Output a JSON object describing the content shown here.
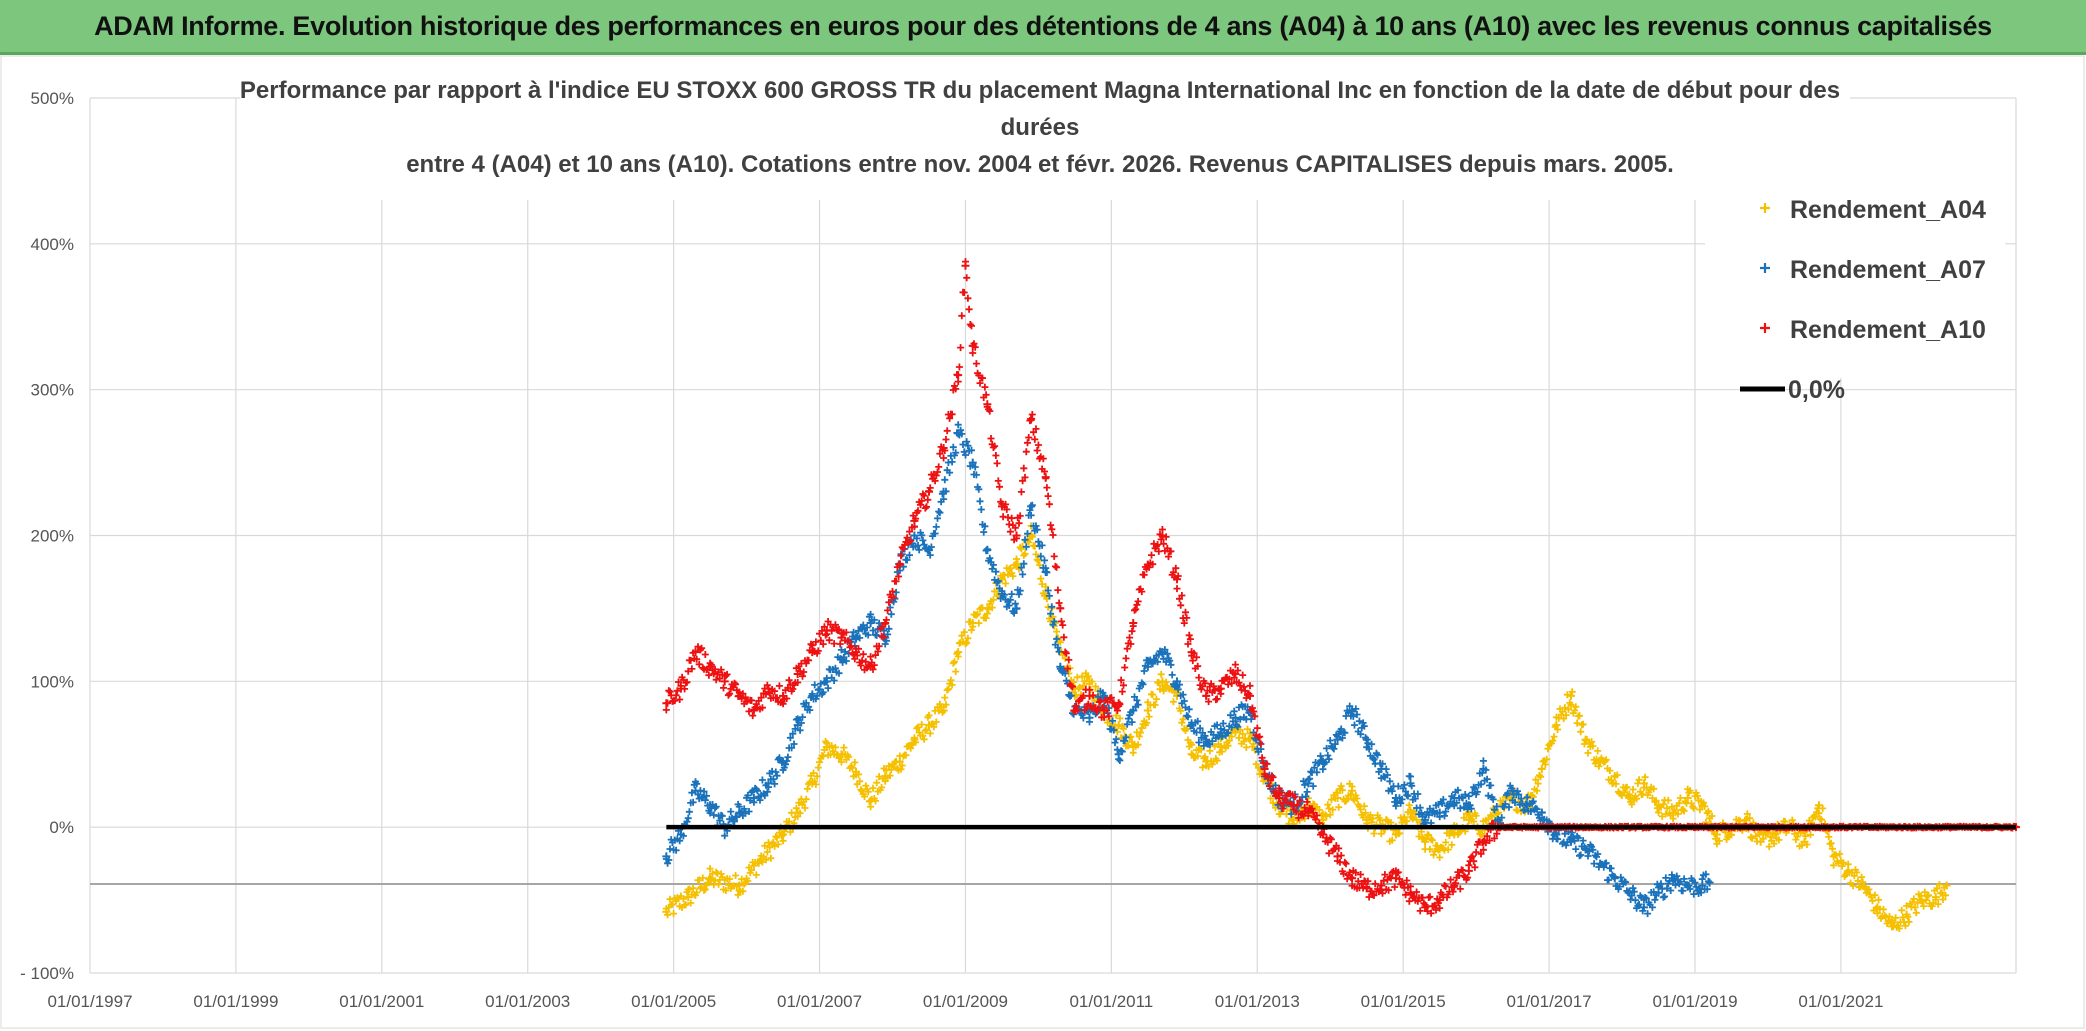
{
  "header": {
    "banner_title": "ADAM Informe. Evolution historique des performances en euros pour des détentions de 4 ans (A04) à 10 ans (A10) avec les revenus connus capitalisés"
  },
  "chart_data": {
    "type": "scatter",
    "title_lines": [
      "Performance par rapport à l'indice EU STOXX 600 GROSS TR  du placement Magna International Inc en fonction de la date de début pour des",
      "durées",
      "entre 4 (A04) et 10 ans (A10). Cotations entre nov. 2004 et févr. 2026. Revenus CAPITALISES depuis mars. 2005."
    ],
    "x_ticks": [
      "01/01/1997",
      "01/01/1999",
      "01/01/2001",
      "01/01/2003",
      "01/01/2005",
      "01/01/2007",
      "01/01/2009",
      "01/01/2011",
      "01/01/2013",
      "01/01/2015",
      "01/01/2017",
      "01/01/2019",
      "01/01/2021"
    ],
    "x_range_years": [
      1997,
      2023.4
    ],
    "y_ticks": [
      "500%",
      "400%",
      "300%",
      "200%",
      "100%",
      "0%",
      "- 100%"
    ],
    "y_tick_values": [
      500,
      400,
      300,
      200,
      100,
      0,
      -100
    ],
    "ylim": [
      -100,
      500
    ],
    "colors": {
      "A04": "#f5c000",
      "A07": "#1a72bb",
      "A10": "#ee1111",
      "zero": "#000000"
    },
    "legend": [
      "Rendement_A04",
      "Rendement_A07",
      "Rendement_A10",
      "0,0%"
    ],
    "series": [
      {
        "name": "Rendement_A04",
        "key": "A04",
        "points": [
          [
            2004.9,
            -58
          ],
          [
            2005.2,
            -48
          ],
          [
            2005.5,
            -35
          ],
          [
            2005.9,
            -40
          ],
          [
            2006.2,
            -22
          ],
          [
            2006.5,
            -5
          ],
          [
            2006.7,
            10
          ],
          [
            2006.9,
            30
          ],
          [
            2007.1,
            55
          ],
          [
            2007.3,
            50
          ],
          [
            2007.5,
            38
          ],
          [
            2007.7,
            18
          ],
          [
            2007.9,
            35
          ],
          [
            2008.1,
            45
          ],
          [
            2008.3,
            60
          ],
          [
            2008.5,
            70
          ],
          [
            2008.7,
            80
          ],
          [
            2008.9,
            120
          ],
          [
            2009.1,
            140
          ],
          [
            2009.3,
            150
          ],
          [
            2009.5,
            170
          ],
          [
            2009.7,
            180
          ],
          [
            2009.9,
            200
          ],
          [
            2010.1,
            160
          ],
          [
            2010.3,
            120
          ],
          [
            2010.5,
            95
          ],
          [
            2010.7,
            100
          ],
          [
            2010.9,
            80
          ],
          [
            2011.1,
            70
          ],
          [
            2011.3,
            55
          ],
          [
            2011.5,
            80
          ],
          [
            2011.7,
            100
          ],
          [
            2011.9,
            90
          ],
          [
            2012.1,
            50
          ],
          [
            2012.3,
            45
          ],
          [
            2012.5,
            55
          ],
          [
            2012.7,
            65
          ],
          [
            2012.9,
            60
          ],
          [
            2013.1,
            35
          ],
          [
            2013.3,
            15
          ],
          [
            2013.5,
            5
          ],
          [
            2013.7,
            15
          ],
          [
            2013.9,
            5
          ],
          [
            2014.1,
            20
          ],
          [
            2014.3,
            25
          ],
          [
            2014.5,
            5
          ],
          [
            2014.7,
            0
          ],
          [
            2014.9,
            -5
          ],
          [
            2015.1,
            10
          ],
          [
            2015.3,
            -10
          ],
          [
            2015.5,
            -15
          ],
          [
            2015.7,
            -5
          ],
          [
            2015.9,
            5
          ],
          [
            2016.1,
            0
          ],
          [
            2016.3,
            10
          ],
          [
            2016.5,
            20
          ],
          [
            2016.7,
            15
          ],
          [
            2016.9,
            40
          ],
          [
            2017.1,
            70
          ],
          [
            2017.3,
            90
          ],
          [
            2017.5,
            60
          ],
          [
            2017.7,
            45
          ],
          [
            2017.9,
            35
          ],
          [
            2018.1,
            20
          ],
          [
            2018.3,
            30
          ],
          [
            2018.5,
            15
          ],
          [
            2018.7,
            10
          ],
          [
            2018.9,
            20
          ],
          [
            2019.1,
            15
          ],
          [
            2019.3,
            -5
          ],
          [
            2019.5,
            0
          ],
          [
            2019.7,
            5
          ],
          [
            2019.9,
            -10
          ],
          [
            2020.1,
            -5
          ],
          [
            2020.3,
            0
          ],
          [
            2020.5,
            -10
          ],
          [
            2020.7,
            15
          ],
          [
            2020.9,
            -20
          ],
          [
            2021.1,
            -30
          ],
          [
            2021.3,
            -40
          ],
          [
            2021.5,
            -55
          ],
          [
            2021.7,
            -68
          ],
          [
            2021.9,
            -60
          ],
          [
            2022.1,
            -50
          ],
          [
            2022.3,
            -48
          ],
          [
            2022.45,
            -40
          ]
        ]
      },
      {
        "name": "Rendement_A07",
        "key": "A07",
        "points": [
          [
            2004.9,
            -20
          ],
          [
            2005.1,
            -5
          ],
          [
            2005.3,
            25
          ],
          [
            2005.5,
            15
          ],
          [
            2005.7,
            0
          ],
          [
            2005.9,
            10
          ],
          [
            2006.1,
            20
          ],
          [
            2006.3,
            30
          ],
          [
            2006.5,
            45
          ],
          [
            2006.7,
            70
          ],
          [
            2006.9,
            90
          ],
          [
            2007.1,
            100
          ],
          [
            2007.3,
            115
          ],
          [
            2007.5,
            130
          ],
          [
            2007.7,
            140
          ],
          [
            2007.9,
            130
          ],
          [
            2008.1,
            180
          ],
          [
            2008.3,
            200
          ],
          [
            2008.5,
            190
          ],
          [
            2008.7,
            230
          ],
          [
            2008.9,
            270
          ],
          [
            2009.1,
            250
          ],
          [
            2009.3,
            190
          ],
          [
            2009.5,
            160
          ],
          [
            2009.7,
            150
          ],
          [
            2009.9,
            220
          ],
          [
            2010.1,
            175
          ],
          [
            2010.3,
            110
          ],
          [
            2010.5,
            80
          ],
          [
            2010.7,
            75
          ],
          [
            2010.9,
            90
          ],
          [
            2011.1,
            50
          ],
          [
            2011.3,
            80
          ],
          [
            2011.5,
            110
          ],
          [
            2011.7,
            120
          ],
          [
            2011.9,
            100
          ],
          [
            2012.1,
            70
          ],
          [
            2012.3,
            60
          ],
          [
            2012.5,
            65
          ],
          [
            2012.7,
            75
          ],
          [
            2012.9,
            80
          ],
          [
            2013.1,
            40
          ],
          [
            2013.3,
            20
          ],
          [
            2013.5,
            15
          ],
          [
            2013.7,
            30
          ],
          [
            2013.9,
            45
          ],
          [
            2014.1,
            60
          ],
          [
            2014.3,
            80
          ],
          [
            2014.5,
            60
          ],
          [
            2014.7,
            40
          ],
          [
            2014.9,
            20
          ],
          [
            2015.1,
            30
          ],
          [
            2015.3,
            5
          ],
          [
            2015.5,
            10
          ],
          [
            2015.7,
            20
          ],
          [
            2015.9,
            15
          ],
          [
            2016.1,
            40
          ],
          [
            2016.3,
            5
          ],
          [
            2016.5,
            25
          ],
          [
            2016.7,
            15
          ],
          [
            2016.9,
            10
          ],
          [
            2017.1,
            -5
          ],
          [
            2017.3,
            -10
          ],
          [
            2017.5,
            -15
          ],
          [
            2017.7,
            -25
          ],
          [
            2017.9,
            -35
          ],
          [
            2018.1,
            -45
          ],
          [
            2018.3,
            -55
          ],
          [
            2018.5,
            -45
          ],
          [
            2018.7,
            -35
          ],
          [
            2018.9,
            -40
          ],
          [
            2019.1,
            -40
          ],
          [
            2019.2,
            -38
          ]
        ]
      },
      {
        "name": "Rendement_A10",
        "key": "A10",
        "points": [
          [
            2004.9,
            85
          ],
          [
            2005.1,
            95
          ],
          [
            2005.3,
            120
          ],
          [
            2005.5,
            110
          ],
          [
            2005.7,
            100
          ],
          [
            2005.9,
            90
          ],
          [
            2006.1,
            80
          ],
          [
            2006.3,
            95
          ],
          [
            2006.5,
            90
          ],
          [
            2006.7,
            105
          ],
          [
            2006.9,
            120
          ],
          [
            2007.1,
            135
          ],
          [
            2007.3,
            130
          ],
          [
            2007.5,
            120
          ],
          [
            2007.7,
            110
          ],
          [
            2007.9,
            140
          ],
          [
            2008.1,
            180
          ],
          [
            2008.3,
            210
          ],
          [
            2008.5,
            230
          ],
          [
            2008.7,
            260
          ],
          [
            2008.9,
            310
          ],
          [
            2009.0,
            385
          ],
          [
            2009.1,
            330
          ],
          [
            2009.3,
            290
          ],
          [
            2009.5,
            220
          ],
          [
            2009.7,
            200
          ],
          [
            2009.9,
            280
          ],
          [
            2010.1,
            240
          ],
          [
            2010.3,
            150
          ],
          [
            2010.5,
            80
          ],
          [
            2010.7,
            90
          ],
          [
            2010.9,
            80
          ],
          [
            2011.1,
            85
          ],
          [
            2011.3,
            140
          ],
          [
            2011.5,
            180
          ],
          [
            2011.7,
            200
          ],
          [
            2011.9,
            170
          ],
          [
            2012.1,
            120
          ],
          [
            2012.3,
            90
          ],
          [
            2012.5,
            95
          ],
          [
            2012.7,
            105
          ],
          [
            2012.9,
            90
          ],
          [
            2013.1,
            40
          ],
          [
            2013.3,
            20
          ],
          [
            2013.5,
            15
          ],
          [
            2013.7,
            10
          ],
          [
            2013.9,
            -5
          ],
          [
            2014.1,
            -20
          ],
          [
            2014.3,
            -35
          ],
          [
            2014.5,
            -42
          ],
          [
            2014.7,
            -40
          ],
          [
            2014.9,
            -35
          ],
          [
            2015.1,
            -45
          ],
          [
            2015.3,
            -55
          ],
          [
            2015.5,
            -50
          ],
          [
            2015.7,
            -40
          ],
          [
            2015.9,
            -30
          ],
          [
            2016.1,
            -10
          ],
          [
            2016.3,
            0
          ],
          [
            2016.5,
            0
          ],
          [
            2017.0,
            0
          ],
          [
            2017.5,
            0
          ],
          [
            2018.0,
            0
          ],
          [
            2018.5,
            0
          ],
          [
            2019.0,
            0
          ],
          [
            2019.5,
            0
          ],
          [
            2020.0,
            0
          ],
          [
            2020.5,
            0
          ],
          [
            2021.0,
            0
          ],
          [
            2021.5,
            0
          ],
          [
            2022.0,
            0
          ],
          [
            2022.5,
            0
          ],
          [
            2023.0,
            0
          ],
          [
            2023.4,
            0
          ]
        ]
      }
    ],
    "zero_line": {
      "name": "0,0%",
      "x_range": [
        2004.9,
        2023.4
      ],
      "value": 0
    }
  }
}
